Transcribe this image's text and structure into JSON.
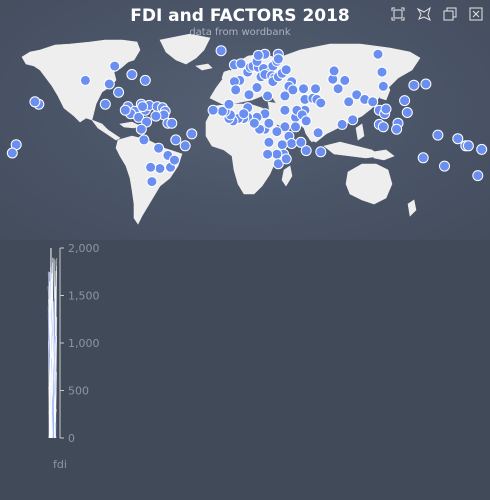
{
  "title": {
    "text": "FDI and FACTORS 2018",
    "subtext": "data from wordbank"
  },
  "toolbox": {
    "icons": [
      "zoom-select-icon",
      "brush-lasso-icon",
      "keep-selection-icon",
      "clear-selection-icon"
    ]
  },
  "colors": {
    "background": "#404a59",
    "land": "#eeeeee",
    "point": "#6a8ff0",
    "point_border": "#ffffff",
    "axis_text": "#8c95a4",
    "axis_line": "#cccccc",
    "parallel_line": "#ffffff",
    "parallel_highlight": "#6a8ff0"
  },
  "map_points": [
    [
      -98,
      52
    ],
    [
      -85,
      45
    ],
    [
      -75,
      40
    ],
    [
      -95,
      30
    ],
    [
      -105,
      20
    ],
    [
      -88,
      18
    ],
    [
      -83,
      14
    ],
    [
      -86,
      12
    ],
    [
      -80,
      9
    ],
    [
      -75,
      15
    ],
    [
      -78,
      20
    ],
    [
      -72,
      19
    ],
    [
      -66,
      18
    ],
    [
      -62,
      17
    ],
    [
      -60,
      14
    ],
    [
      -61,
      11
    ],
    [
      -77,
      18
    ],
    [
      -90,
      15
    ],
    [
      -102,
      37
    ],
    [
      -120,
      40
    ],
    [
      -155,
      20
    ],
    [
      -158,
      22
    ],
    [
      -74,
      5
    ],
    [
      -67,
      10
    ],
    [
      -78,
      -1
    ],
    [
      -76,
      -10
    ],
    [
      -65,
      -17
    ],
    [
      -58,
      -23
    ],
    [
      -56,
      -33
    ],
    [
      -64,
      -34
    ],
    [
      -71,
      -33
    ],
    [
      -52,
      -10
    ],
    [
      -45,
      -15
    ],
    [
      -40,
      -5
    ],
    [
      -58,
      4
    ],
    [
      -55,
      4
    ],
    [
      -53,
      -27
    ],
    [
      -70,
      -45
    ],
    [
      -18,
      65
    ],
    [
      -8,
      53
    ],
    [
      -3,
      54
    ],
    [
      -4,
      40
    ],
    [
      -8,
      39
    ],
    [
      2,
      47
    ],
    [
      4,
      51
    ],
    [
      6,
      52
    ],
    [
      10,
      51
    ],
    [
      9,
      56
    ],
    [
      15,
      62
    ],
    [
      25,
      62
    ],
    [
      10,
      61
    ],
    [
      14,
      50
    ],
    [
      19,
      47
    ],
    [
      21,
      52
    ],
    [
      24,
      56
    ],
    [
      25,
      58
    ],
    [
      12,
      43
    ],
    [
      15,
      45
    ],
    [
      20,
      44
    ],
    [
      22,
      42
    ],
    [
      21,
      39
    ],
    [
      25,
      43
    ],
    [
      28,
      46
    ],
    [
      31,
      49
    ],
    [
      35,
      39
    ],
    [
      33,
      35
    ],
    [
      36,
      32
    ],
    [
      45,
      24
    ],
    [
      51,
      25
    ],
    [
      54,
      24
    ],
    [
      45,
      15
    ],
    [
      57,
      21
    ],
    [
      53,
      33
    ],
    [
      44,
      33
    ],
    [
      66,
      41
    ],
    [
      67,
      48
    ],
    [
      75,
      40
    ],
    [
      70,
      33
    ],
    [
      78,
      22
    ],
    [
      84,
      28
    ],
    [
      90,
      24
    ],
    [
      81,
      7
    ],
    [
      96,
      22
    ],
    [
      101,
      15
    ],
    [
      105,
      12
    ],
    [
      106,
      16
    ],
    [
      104,
      35
    ],
    [
      127,
      36
    ],
    [
      136,
      37
    ],
    [
      103,
      47
    ],
    [
      101,
      3
    ],
    [
      115,
      4
    ],
    [
      114,
      -1
    ],
    [
      122,
      13
    ],
    [
      120,
      23
    ],
    [
      104,
      1
    ],
    [
      100,
      62
    ],
    [
      -7,
      32
    ],
    [
      3,
      28
    ],
    [
      9,
      34
    ],
    [
      17,
      27
    ],
    [
      30,
      27
    ],
    [
      30,
      15
    ],
    [
      38,
      9
    ],
    [
      39,
      15
    ],
    [
      43,
      11
    ],
    [
      46,
      6
    ],
    [
      38,
      1
    ],
    [
      30,
      1
    ],
    [
      33,
      -7
    ],
    [
      35,
      -13
    ],
    [
      28,
      -14
    ],
    [
      29,
      -22
    ],
    [
      24,
      -22
    ],
    [
      17,
      -22
    ],
    [
      25,
      -30
    ],
    [
      31,
      -26
    ],
    [
      46,
      -19
    ],
    [
      57,
      -20
    ],
    [
      18,
      -12
    ],
    [
      24,
      -3
    ],
    [
      15,
      -1
    ],
    [
      11,
      -1
    ],
    [
      18,
      4
    ],
    [
      15,
      12
    ],
    [
      9,
      9
    ],
    [
      2,
      9
    ],
    [
      -1,
      8
    ],
    [
      -5,
      8
    ],
    [
      -9,
      6
    ],
    [
      -12,
      8
    ],
    [
      -11,
      11
    ],
    [
      -15,
      14
    ],
    [
      -17,
      14
    ],
    [
      -24,
      15
    ],
    [
      2,
      17
    ],
    [
      -1,
      12
    ],
    [
      7,
      4
    ],
    [
      -12,
      20
    ],
    [
      42,
      -12
    ],
    [
      55,
      -4
    ],
    [
      73,
      3
    ],
    [
      134,
      -25
    ],
    [
      150,
      -32
    ],
    [
      175,
      -40
    ],
    [
      178,
      -18
    ],
    [
      160,
      -9
    ],
    [
      145,
      -6
    ],
    [
      -172,
      -14
    ],
    [
      -175,
      -21
    ],
    [
      166,
      -15
    ],
    [
      168,
      -15
    ]
  ],
  "parallel_axis": {
    "name": "fdi",
    "ticks": [
      "2,000",
      "1,500",
      "1,000",
      "500",
      "0"
    ],
    "max": 2000,
    "min": 0
  }
}
